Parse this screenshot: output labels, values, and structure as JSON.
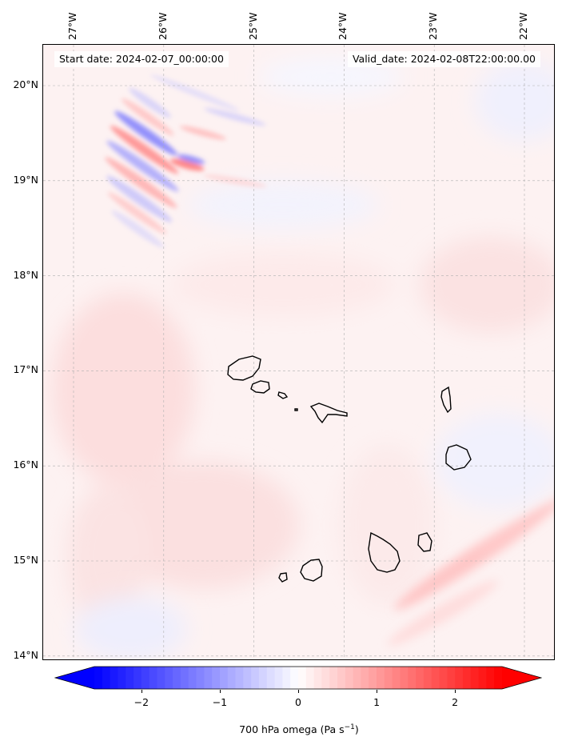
{
  "map": {
    "start_date": "Start date: 2024-02-07_00:00:00",
    "valid_date": "Valid_date: 2024-02-08T22:00:00.00",
    "variable": "700 hPa omega",
    "units_label": "(Pa s",
    "units_sup": "−1",
    "units_close": ")",
    "lon_ticks": [
      {
        "label": "27°W",
        "value": -27
      },
      {
        "label": "26°W",
        "value": -26
      },
      {
        "label": "25°W",
        "value": -25
      },
      {
        "label": "24°W",
        "value": -24
      },
      {
        "label": "23°W",
        "value": -23
      },
      {
        "label": "22°W",
        "value": -22
      }
    ],
    "lat_ticks": [
      {
        "label": "20°N",
        "value": 20
      },
      {
        "label": "19°N",
        "value": 19
      },
      {
        "label": "18°N",
        "value": 18
      },
      {
        "label": "17°N",
        "value": 17
      },
      {
        "label": "16°N",
        "value": 16
      },
      {
        "label": "15°N",
        "value": 15
      },
      {
        "label": "14°N",
        "value": 14
      }
    ],
    "colors": {
      "negative": "#0000ff",
      "neutral": "#ffffff",
      "positive": "#ff0000",
      "grid": "#b0b0b0",
      "coast": "#000000"
    }
  },
  "colorbar": {
    "min": -2.6,
    "max": 2.6,
    "ticks": [
      {
        "label": "−2",
        "value": -2
      },
      {
        "label": "−1",
        "value": -1
      },
      {
        "label": "0",
        "value": 0
      },
      {
        "label": "1",
        "value": 1
      },
      {
        "label": "2",
        "value": 2
      }
    ]
  }
}
